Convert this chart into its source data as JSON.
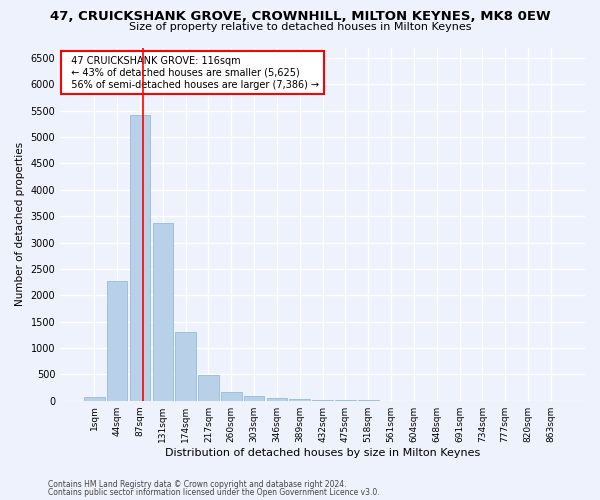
{
  "title": "47, CRUICKSHANK GROVE, CROWNHILL, MILTON KEYNES, MK8 0EW",
  "subtitle": "Size of property relative to detached houses in Milton Keynes",
  "xlabel": "Distribution of detached houses by size in Milton Keynes",
  "ylabel": "Number of detached properties",
  "footer_line1": "Contains HM Land Registry data © Crown copyright and database right 2024.",
  "footer_line2": "Contains public sector information licensed under the Open Government Licence v3.0.",
  "bar_categories": [
    "1sqm",
    "44sqm",
    "87sqm",
    "131sqm",
    "174sqm",
    "217sqm",
    "260sqm",
    "303sqm",
    "346sqm",
    "389sqm",
    "432sqm",
    "475sqm",
    "518sqm",
    "561sqm",
    "604sqm",
    "648sqm",
    "691sqm",
    "734sqm",
    "777sqm",
    "820sqm",
    "863sqm"
  ],
  "bar_values": [
    70,
    2280,
    5420,
    3380,
    1310,
    480,
    160,
    85,
    55,
    30,
    15,
    8,
    5,
    3,
    2,
    1,
    1,
    1,
    1,
    1,
    1
  ],
  "bar_color": "#b8d0e8",
  "bar_edge_color": "#8ab4d4",
  "ylim": [
    0,
    6700
  ],
  "yticks": [
    0,
    500,
    1000,
    1500,
    2000,
    2500,
    3000,
    3500,
    4000,
    4500,
    5000,
    5500,
    6000,
    6500
  ],
  "property_bar_index": 2,
  "vline_color": "red",
  "annotation_text": "  47 CRUICKSHANK GROVE: 116sqm\n  ← 43% of detached houses are smaller (5,625)\n  56% of semi-detached houses are larger (7,386) →",
  "annotation_box_color": "white",
  "annotation_box_edge_color": "red",
  "bg_color": "#eef2fc",
  "grid_color": "white",
  "title_fontsize": 9.5,
  "subtitle_fontsize": 8,
  "annotation_fontsize": 7,
  "ylabel_fontsize": 7.5,
  "xlabel_fontsize": 8,
  "tick_fontsize": 6.5,
  "ytick_fontsize": 7
}
